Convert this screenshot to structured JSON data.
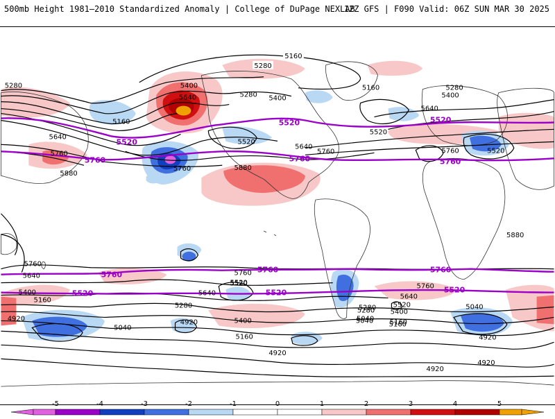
{
  "header": {
    "title_left": "500mb Height 1981–2010 Standardized Anomaly | College of DuPage NEXLAB",
    "title_right": "12Z GFS | F090 Valid: 06Z SUN MAR 30 2025"
  },
  "colors": {
    "purple_contour": "#9a00c8",
    "black_contour": "#000000",
    "coast": "#333333",
    "anomaly": {
      "-5": "#e060e0",
      "-4": "#9b00c8",
      "-3": "#1040c0",
      "-2": "#4070e0",
      "-1": "#b8d8f4",
      "0": "#ffffff",
      "1": "#f8c8c8",
      "2": "#f07070",
      "3": "#d01010",
      "4": "#b00000",
      "5": "#f0a000"
    }
  },
  "contour_labels": {
    "black": [
      "5160",
      "5280",
      "5400",
      "5280",
      "5160",
      "5280",
      "5400",
      "5520",
      "5640",
      "5760",
      "5640",
      "5400",
      "5280",
      "5160",
      "5520",
      "5640",
      "5760",
      "5880",
      "5760",
      "5520",
      "5640",
      "5760",
      "5880",
      "5760",
      "5640",
      "5520",
      "5400",
      "5160",
      "4920",
      "5280",
      "5040",
      "4920",
      "5160",
      "5520",
      "5640",
      "5760",
      "5400",
      "5280",
      "5160",
      "5040",
      "4920",
      "4920",
      "5040",
      "5760",
      "5640",
      "5520",
      "5400",
      "5280",
      "5160",
      "5040",
      "4920",
      "4920",
      "5880"
    ],
    "purple": [
      "5520",
      "5760",
      "5520",
      "5760",
      "5520",
      "5760",
      "5760",
      "5760",
      "5520",
      "5520",
      "5760",
      "5520"
    ]
  },
  "legend": {
    "ticks": [
      "-5",
      "-4",
      "-3",
      "-2",
      "-1",
      "0",
      "1",
      "2",
      "3",
      "4",
      "5"
    ]
  }
}
